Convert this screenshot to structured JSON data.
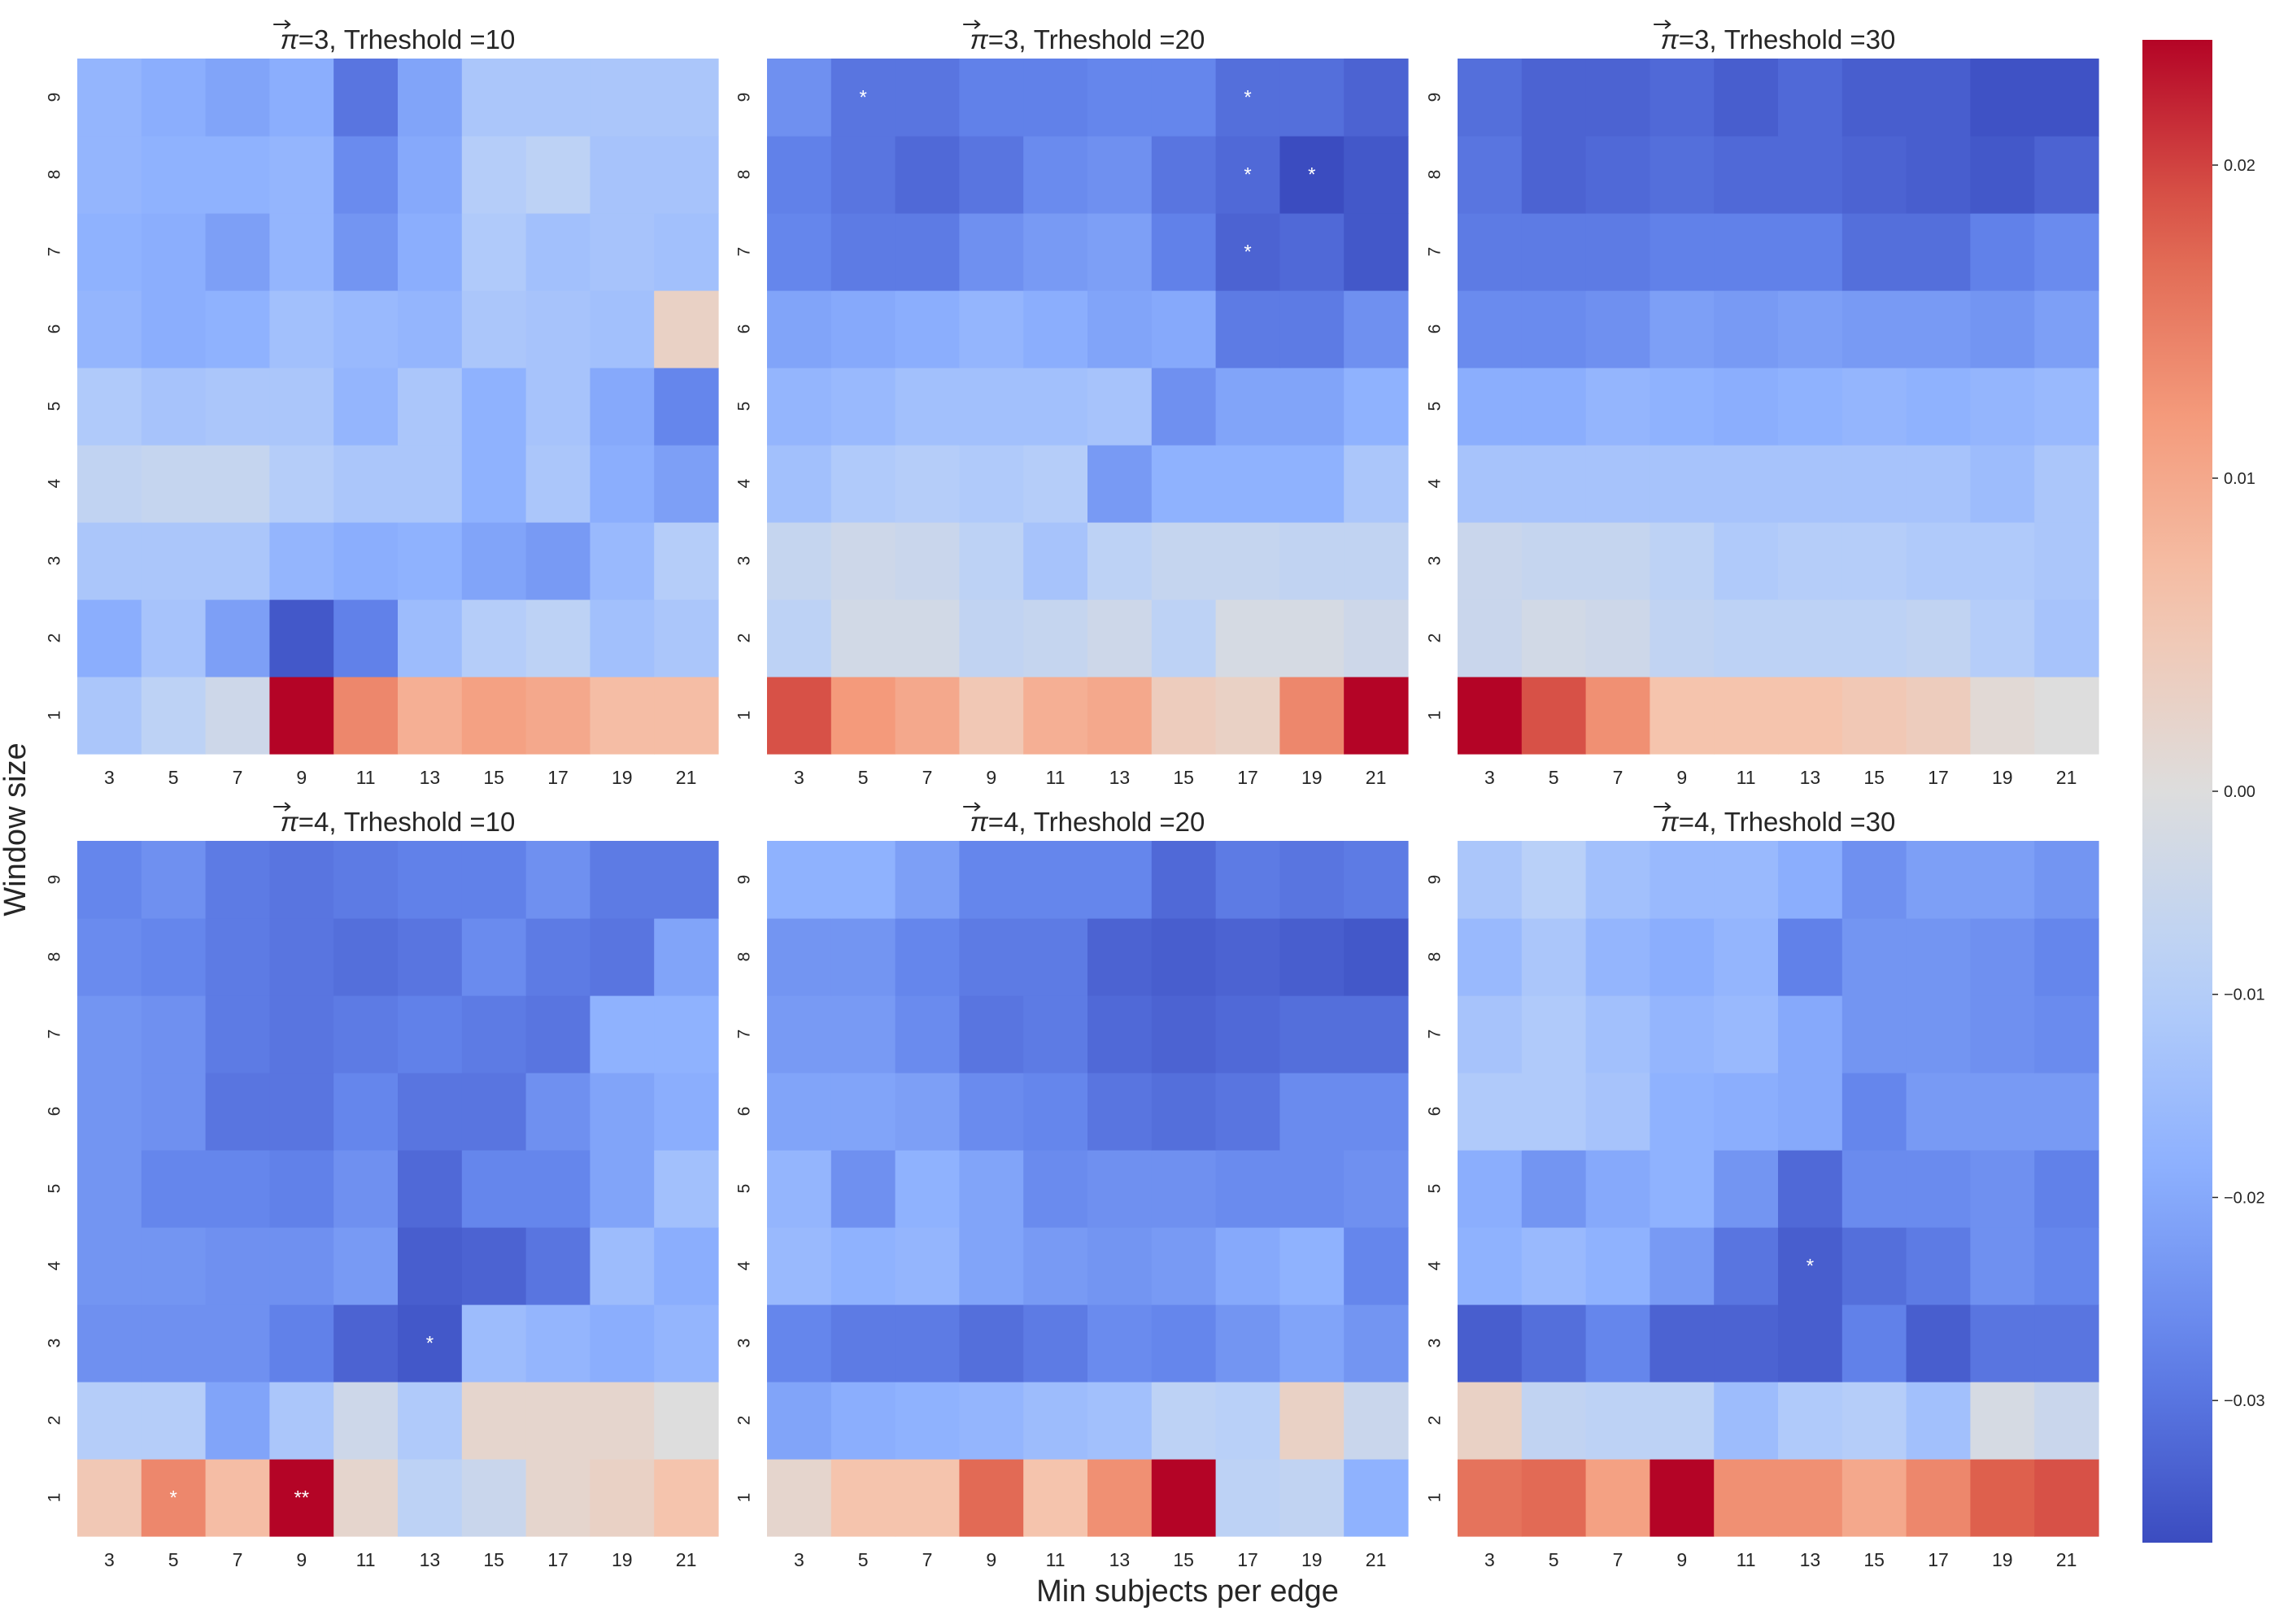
{
  "chart_data": {
    "type": "heatmap",
    "xlabel": "Min subjects per edge",
    "ylabel": "Window size",
    "x_categories": [
      "3",
      "5",
      "7",
      "9",
      "11",
      "13",
      "15",
      "17",
      "19",
      "21"
    ],
    "y_categories": [
      "1",
      "2",
      "3",
      "4",
      "5",
      "6",
      "7",
      "8",
      "9"
    ],
    "colorbar": {
      "colormap": "coolwarm",
      "vmin": -0.037,
      "vmax": 0.024,
      "ticks": [
        0.02,
        0.01,
        0.0,
        -0.01,
        -0.02,
        -0.03
      ],
      "tick_labels": [
        "0.02",
        "0.01",
        "0.00",
        "−0.01",
        "−0.02",
        "−0.03"
      ]
    },
    "panels": [
      {
        "title_symbol": "π",
        "title_rest": "=3, Trheshold =10",
        "rows": [
          [
            -0.012,
            -0.008,
            -0.004,
            0.024,
            0.014,
            0.009,
            0.011,
            0.01,
            0.007,
            0.007
          ],
          [
            -0.019,
            -0.013,
            -0.022,
            -0.035,
            -0.028,
            -0.015,
            -0.01,
            -0.008,
            -0.014,
            -0.012
          ],
          [
            -0.012,
            -0.012,
            -0.012,
            -0.017,
            -0.019,
            -0.018,
            -0.021,
            -0.023,
            -0.016,
            -0.01
          ],
          [
            -0.007,
            -0.006,
            -0.006,
            -0.01,
            -0.012,
            -0.012,
            -0.018,
            -0.012,
            -0.019,
            -0.022
          ],
          [
            -0.011,
            -0.013,
            -0.012,
            -0.012,
            -0.017,
            -0.012,
            -0.018,
            -0.013,
            -0.02,
            -0.027
          ],
          [
            -0.017,
            -0.019,
            -0.018,
            -0.014,
            -0.016,
            -0.017,
            -0.012,
            -0.013,
            -0.014,
            0.003
          ],
          [
            -0.018,
            -0.019,
            -0.022,
            -0.017,
            -0.024,
            -0.019,
            -0.011,
            -0.014,
            -0.013,
            -0.014
          ],
          [
            -0.017,
            -0.018,
            -0.018,
            -0.017,
            -0.026,
            -0.02,
            -0.01,
            -0.008,
            -0.013,
            -0.013
          ],
          [
            -0.017,
            -0.019,
            -0.021,
            -0.019,
            -0.03,
            -0.021,
            -0.012,
            -0.012,
            -0.012,
            -0.012
          ]
        ],
        "annotations": []
      },
      {
        "title_symbol": "π",
        "title_rest": "=3, Trheshold =20",
        "rows": [
          [
            0.019,
            0.012,
            0.01,
            0.005,
            0.009,
            0.01,
            0.004,
            0.003,
            0.014,
            0.024
          ],
          [
            -0.008,
            -0.003,
            -0.003,
            -0.007,
            -0.006,
            -0.004,
            -0.008,
            -0.002,
            -0.002,
            -0.004
          ],
          [
            -0.006,
            -0.004,
            -0.005,
            -0.008,
            -0.013,
            -0.008,
            -0.006,
            -0.006,
            -0.007,
            -0.007
          ],
          [
            -0.014,
            -0.011,
            -0.01,
            -0.011,
            -0.01,
            -0.023,
            -0.018,
            -0.018,
            -0.018,
            -0.012
          ],
          [
            -0.017,
            -0.016,
            -0.014,
            -0.014,
            -0.014,
            -0.013,
            -0.025,
            -0.021,
            -0.021,
            -0.018
          ],
          [
            -0.021,
            -0.02,
            -0.019,
            -0.017,
            -0.019,
            -0.021,
            -0.02,
            -0.029,
            -0.029,
            -0.025
          ],
          [
            -0.027,
            -0.029,
            -0.029,
            -0.025,
            -0.023,
            -0.022,
            -0.028,
            -0.033,
            -0.032,
            -0.035
          ],
          [
            -0.028,
            -0.03,
            -0.032,
            -0.03,
            -0.026,
            -0.025,
            -0.03,
            -0.032,
            -0.037,
            -0.035
          ],
          [
            -0.025,
            -0.03,
            -0.03,
            -0.028,
            -0.028,
            -0.027,
            -0.027,
            -0.031,
            -0.031,
            -0.033
          ]
        ],
        "annotations": [
          {
            "row": 9,
            "col": 5,
            "text": "*"
          },
          {
            "row": 9,
            "col": 17,
            "text": "*"
          },
          {
            "row": 8,
            "col": 17,
            "text": "*"
          },
          {
            "row": 8,
            "col": 19,
            "text": "*"
          },
          {
            "row": 7,
            "col": 17,
            "text": "*"
          }
        ]
      },
      {
        "title_symbol": "π",
        "title_rest": "=3, Trheshold =30",
        "rows": [
          [
            0.024,
            0.019,
            0.013,
            0.006,
            0.006,
            0.006,
            0.005,
            0.004,
            0.001,
            0.0
          ],
          [
            -0.005,
            -0.003,
            -0.004,
            -0.007,
            -0.008,
            -0.008,
            -0.008,
            -0.007,
            -0.01,
            -0.013
          ],
          [
            -0.005,
            -0.006,
            -0.006,
            -0.008,
            -0.011,
            -0.01,
            -0.01,
            -0.011,
            -0.011,
            -0.012
          ],
          [
            -0.013,
            -0.013,
            -0.013,
            -0.013,
            -0.013,
            -0.013,
            -0.013,
            -0.013,
            -0.015,
            -0.012
          ],
          [
            -0.019,
            -0.019,
            -0.017,
            -0.018,
            -0.019,
            -0.018,
            -0.017,
            -0.018,
            -0.017,
            -0.016
          ],
          [
            -0.026,
            -0.026,
            -0.025,
            -0.022,
            -0.023,
            -0.022,
            -0.023,
            -0.023,
            -0.024,
            -0.022
          ],
          [
            -0.029,
            -0.029,
            -0.029,
            -0.028,
            -0.028,
            -0.028,
            -0.031,
            -0.031,
            -0.028,
            -0.026
          ],
          [
            -0.03,
            -0.033,
            -0.032,
            -0.031,
            -0.032,
            -0.032,
            -0.033,
            -0.034,
            -0.035,
            -0.033
          ],
          [
            -0.031,
            -0.033,
            -0.033,
            -0.032,
            -0.034,
            -0.032,
            -0.034,
            -0.034,
            -0.036,
            -0.036
          ]
        ],
        "annotations": []
      },
      {
        "title_symbol": "π",
        "title_rest": "=4, Trheshold =10",
        "rows": [
          [
            0.005,
            0.014,
            0.007,
            0.024,
            0.002,
            -0.008,
            -0.005,
            0.002,
            0.003,
            0.006
          ],
          [
            -0.01,
            -0.01,
            -0.021,
            -0.012,
            -0.004,
            -0.011,
            0.002,
            0.002,
            0.002,
            0.0
          ],
          [
            -0.025,
            -0.025,
            -0.025,
            -0.028,
            -0.033,
            -0.035,
            -0.015,
            -0.017,
            -0.019,
            -0.017
          ],
          [
            -0.024,
            -0.024,
            -0.025,
            -0.025,
            -0.023,
            -0.034,
            -0.033,
            -0.03,
            -0.015,
            -0.019
          ],
          [
            -0.024,
            -0.027,
            -0.027,
            -0.028,
            -0.025,
            -0.032,
            -0.027,
            -0.027,
            -0.021,
            -0.014
          ],
          [
            -0.024,
            -0.025,
            -0.03,
            -0.03,
            -0.027,
            -0.03,
            -0.03,
            -0.025,
            -0.021,
            -0.019
          ],
          [
            -0.024,
            -0.025,
            -0.029,
            -0.03,
            -0.029,
            -0.028,
            -0.029,
            -0.03,
            -0.018,
            -0.018
          ],
          [
            -0.026,
            -0.027,
            -0.029,
            -0.03,
            -0.031,
            -0.03,
            -0.026,
            -0.029,
            -0.03,
            -0.021
          ],
          [
            -0.027,
            -0.025,
            -0.029,
            -0.03,
            -0.029,
            -0.028,
            -0.028,
            -0.025,
            -0.029,
            -0.029
          ]
        ],
        "annotations": [
          {
            "row": 1,
            "col": 5,
            "text": "*"
          },
          {
            "row": 1,
            "col": 9,
            "text": "**"
          },
          {
            "row": 3,
            "col": 13,
            "text": "*"
          }
        ]
      },
      {
        "title_symbol": "π",
        "title_rest": "=4, Trheshold =20",
        "rows": [
          [
            0.002,
            0.006,
            0.006,
            0.017,
            0.006,
            0.013,
            0.024,
            -0.008,
            -0.007,
            -0.018
          ],
          [
            -0.021,
            -0.019,
            -0.018,
            -0.017,
            -0.015,
            -0.014,
            -0.008,
            -0.009,
            0.003,
            -0.005
          ],
          [
            -0.027,
            -0.029,
            -0.029,
            -0.031,
            -0.029,
            -0.026,
            -0.027,
            -0.024,
            -0.021,
            -0.024
          ],
          [
            -0.016,
            -0.018,
            -0.017,
            -0.021,
            -0.023,
            -0.024,
            -0.023,
            -0.02,
            -0.018,
            -0.027
          ],
          [
            -0.017,
            -0.025,
            -0.018,
            -0.021,
            -0.026,
            -0.025,
            -0.025,
            -0.026,
            -0.026,
            -0.025
          ],
          [
            -0.021,
            -0.021,
            -0.022,
            -0.026,
            -0.027,
            -0.03,
            -0.031,
            -0.03,
            -0.026,
            -0.026
          ],
          [
            -0.023,
            -0.023,
            -0.026,
            -0.03,
            -0.029,
            -0.032,
            -0.033,
            -0.032,
            -0.031,
            -0.031
          ],
          [
            -0.024,
            -0.024,
            -0.027,
            -0.029,
            -0.029,
            -0.033,
            -0.034,
            -0.033,
            -0.034,
            -0.035
          ],
          [
            -0.018,
            -0.018,
            -0.022,
            -0.027,
            -0.027,
            -0.027,
            -0.032,
            -0.029,
            -0.03,
            -0.029
          ]
        ],
        "annotations": []
      },
      {
        "title_symbol": "π",
        "title_rest": "=4, Trheshold =30",
        "rows": [
          [
            0.016,
            0.017,
            0.011,
            0.024,
            0.013,
            0.013,
            0.01,
            0.014,
            0.018,
            0.019
          ],
          [
            0.003,
            -0.007,
            -0.008,
            -0.008,
            -0.015,
            -0.011,
            -0.01,
            -0.014,
            -0.002,
            -0.005
          ],
          [
            -0.034,
            -0.031,
            -0.027,
            -0.033,
            -0.033,
            -0.034,
            -0.028,
            -0.034,
            -0.03,
            -0.03
          ],
          [
            -0.018,
            -0.016,
            -0.018,
            -0.023,
            -0.03,
            -0.034,
            -0.031,
            -0.029,
            -0.025,
            -0.027
          ],
          [
            -0.019,
            -0.024,
            -0.02,
            -0.018,
            -0.024,
            -0.032,
            -0.026,
            -0.026,
            -0.025,
            -0.028
          ],
          [
            -0.011,
            -0.011,
            -0.013,
            -0.018,
            -0.019,
            -0.02,
            -0.027,
            -0.023,
            -0.023,
            -0.023
          ],
          [
            -0.013,
            -0.011,
            -0.014,
            -0.017,
            -0.016,
            -0.02,
            -0.024,
            -0.024,
            -0.025,
            -0.026
          ],
          [
            -0.016,
            -0.012,
            -0.017,
            -0.019,
            -0.017,
            -0.028,
            -0.024,
            -0.024,
            -0.025,
            -0.027
          ],
          [
            -0.012,
            -0.009,
            -0.014,
            -0.016,
            -0.016,
            -0.019,
            -0.025,
            -0.022,
            -0.022,
            -0.024
          ]
        ],
        "annotations": [
          {
            "row": 4,
            "col": 13,
            "text": "*"
          }
        ]
      }
    ]
  }
}
